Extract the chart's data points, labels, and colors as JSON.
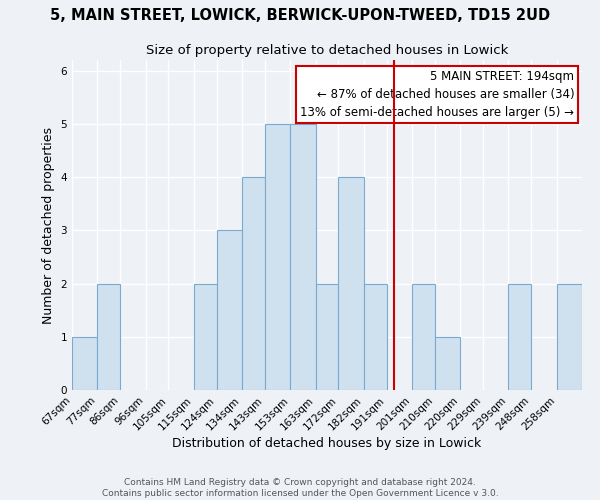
{
  "title": "5, MAIN STREET, LOWICK, BERWICK-UPON-TWEED, TD15 2UD",
  "subtitle": "Size of property relative to detached houses in Lowick",
  "xlabel": "Distribution of detached houses by size in Lowick",
  "ylabel": "Number of detached properties",
  "bin_labels": [
    "67sqm",
    "77sqm",
    "86sqm",
    "96sqm",
    "105sqm",
    "115sqm",
    "124sqm",
    "134sqm",
    "143sqm",
    "153sqm",
    "163sqm",
    "172sqm",
    "182sqm",
    "191sqm",
    "201sqm",
    "210sqm",
    "220sqm",
    "229sqm",
    "239sqm",
    "248sqm",
    "258sqm"
  ],
  "bin_edges": [
    67,
    77,
    86,
    96,
    105,
    115,
    124,
    134,
    143,
    153,
    163,
    172,
    182,
    191,
    201,
    210,
    220,
    229,
    239,
    248,
    258,
    268
  ],
  "counts": [
    1,
    2,
    0,
    0,
    0,
    2,
    3,
    4,
    5,
    5,
    2,
    4,
    2,
    0,
    2,
    1,
    0,
    0,
    2,
    0,
    2
  ],
  "bar_color": "#cfe0ef",
  "bar_edge_color": "#7aaad0",
  "ref_line_x": 194,
  "ref_line_color": "#cc0000",
  "annotation_text": "5 MAIN STREET: 194sqm\n← 87% of detached houses are smaller (34)\n13% of semi-detached houses are larger (5) →",
  "annotation_box_color": "#cc0000",
  "ylim": [
    0,
    6.2
  ],
  "yticks": [
    0,
    1,
    2,
    3,
    4,
    5,
    6
  ],
  "bg_color": "#eef2f7",
  "grid_color": "#ffffff",
  "footer": "Contains HM Land Registry data © Crown copyright and database right 2024.\nContains public sector information licensed under the Open Government Licence v 3.0.",
  "title_fontsize": 10.5,
  "subtitle_fontsize": 9.5,
  "axis_label_fontsize": 9,
  "tick_fontsize": 7.5,
  "annotation_fontsize": 8.5,
  "footer_fontsize": 6.5
}
